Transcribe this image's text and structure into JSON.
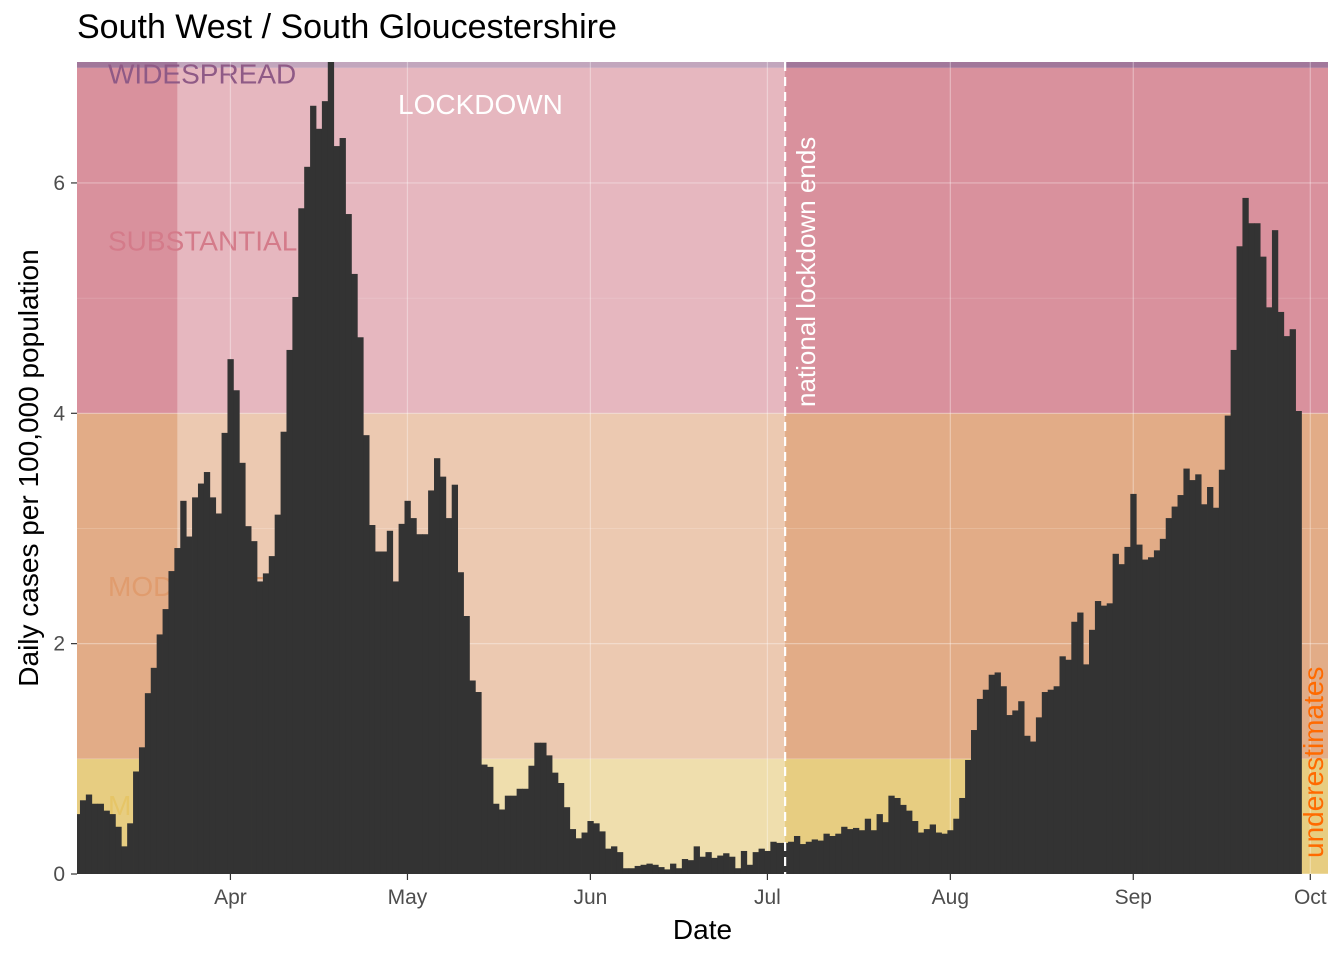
{
  "page": {
    "title": "South West / South Gloucestershire"
  },
  "chart_data": {
    "type": "bar",
    "title": "South West / South Gloucestershire",
    "xlabel": "Date",
    "ylabel": "Daily cases per 100,000 population",
    "x_start": "2020-03-06",
    "x_end": "2020-10-04",
    "ylim": [
      0,
      7.05
    ],
    "yticks": [
      0,
      2,
      4,
      6
    ],
    "xticks": [
      {
        "date": "2020-04-01",
        "label": "Apr"
      },
      {
        "date": "2020-05-01",
        "label": "May"
      },
      {
        "date": "2020-06-01",
        "label": "Jun"
      },
      {
        "date": "2020-07-01",
        "label": "Jul"
      },
      {
        "date": "2020-08-01",
        "label": "Aug"
      },
      {
        "date": "2020-09-01",
        "label": "Sep"
      },
      {
        "date": "2020-10-01",
        "label": "Oct"
      }
    ],
    "first_bar_date": "2020-03-06",
    "values": [
      0.52,
      0.64,
      0.69,
      0.61,
      0.61,
      0.55,
      0.52,
      0.41,
      0.24,
      0.44,
      0.89,
      1.1,
      1.57,
      1.79,
      2.08,
      2.3,
      2.63,
      2.83,
      3.24,
      2.93,
      3.27,
      3.39,
      3.49,
      3.27,
      3.13,
      3.83,
      4.47,
      4.2,
      3.57,
      3.02,
      2.89,
      2.54,
      2.61,
      2.76,
      3.12,
      3.84,
      4.55,
      5.01,
      5.78,
      6.14,
      6.67,
      6.47,
      6.71,
      7.05,
      6.32,
      6.39,
      5.73,
      5.21,
      4.66,
      3.81,
      3.03,
      2.8,
      2.8,
      2.98,
      2.54,
      3.04,
      3.24,
      3.09,
      2.95,
      2.95,
      3.33,
      3.61,
      3.45,
      3.09,
      3.38,
      2.62,
      2.24,
      1.68,
      1.58,
      0.95,
      0.93,
      0.61,
      0.56,
      0.68,
      0.68,
      0.74,
      0.74,
      0.94,
      1.14,
      1.14,
      1.03,
      0.88,
      0.79,
      0.58,
      0.39,
      0.31,
      0.36,
      0.46,
      0.44,
      0.37,
      0.22,
      0.24,
      0.19,
      0.05,
      0.05,
      0.07,
      0.08,
      0.09,
      0.08,
      0.06,
      0.04,
      0.09,
      0.05,
      0.13,
      0.12,
      0.24,
      0.15,
      0.19,
      0.14,
      0.16,
      0.18,
      0.15,
      0.05,
      0.2,
      0.08,
      0.19,
      0.22,
      0.2,
      0.28,
      0.27,
      0.27,
      0.28,
      0.33,
      0.26,
      0.28,
      0.3,
      0.29,
      0.35,
      0.33,
      0.35,
      0.41,
      0.39,
      0.4,
      0.38,
      0.48,
      0.38,
      0.52,
      0.45,
      0.68,
      0.66,
      0.6,
      0.55,
      0.46,
      0.36,
      0.39,
      0.43,
      0.36,
      0.35,
      0.38,
      0.48,
      0.66,
      0.99,
      1.25,
      1.52,
      1.6,
      1.73,
      1.75,
      1.63,
      1.38,
      1.42,
      1.5,
      1.2,
      1.15,
      1.36,
      1.58,
      1.6,
      1.63,
      1.89,
      1.86,
      2.19,
      2.27,
      1.82,
      2.12,
      2.37,
      2.33,
      2.35,
      2.78,
      2.69,
      2.84,
      3.3,
      2.86,
      2.73,
      2.75,
      2.81,
      2.91,
      3.09,
      3.19,
      3.29,
      3.52,
      3.42,
      3.47,
      3.21,
      3.36,
      3.18,
      3.51,
      3.98,
      4.55,
      5.45,
      5.87,
      5.65,
      5.65,
      5.36,
      4.92,
      5.59,
      4.88,
      4.67,
      4.73,
      4.02
    ]
  },
  "bands": [
    {
      "label": "MILD",
      "color": "#e6c567"
    },
    {
      "label": "MODERATE",
      "color": "#e09c6e"
    },
    {
      "label": "SUBSTANTIAL",
      "color": "#d47b8a"
    },
    {
      "label": "WIDESPREAD",
      "color": "#8f5a86"
    }
  ],
  "annotations": {
    "lockdown": "LOCKDOWN",
    "lockdown_ends": "national lockdown ends",
    "underestimates": "underestimates"
  }
}
